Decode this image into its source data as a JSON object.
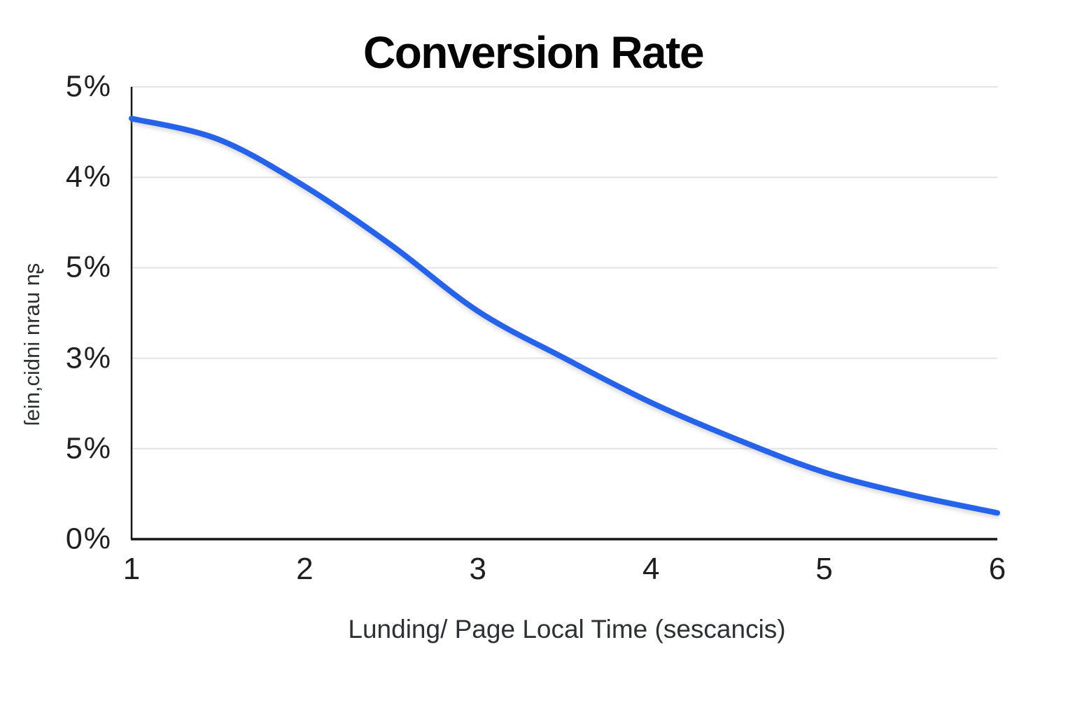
{
  "title": "Conversion Rate",
  "x_axis_label": "Lunding/ Page Local Time (sescancis)",
  "y_axis_label": "ſein,cidni nrau nʂ",
  "chart_data": {
    "type": "line",
    "title": "Conversion Rate",
    "xlabel": "Lunding/ Page Local Time (sescancis)",
    "ylabel": "ſein,cidni nrau nʂ",
    "x_tick_labels": [
      "1",
      "2",
      "3",
      "4",
      "5",
      "6"
    ],
    "y_tick_labels_top_to_bottom": [
      "5%",
      "4%",
      "5%",
      "3%",
      "5%",
      "0%"
    ],
    "xlim": [
      1,
      6
    ],
    "ylim": [
      0,
      5
    ],
    "grid": "horizontal",
    "legend": "none",
    "series": [
      {
        "name": "Conversion Rate",
        "x": [
          1,
          1.5,
          2,
          2.5,
          3,
          3.5,
          4,
          4.5,
          5,
          5.5,
          6
        ],
        "y": [
          4.65,
          4.42,
          3.9,
          3.25,
          2.52,
          2.0,
          1.51,
          1.1,
          0.74,
          0.49,
          0.29
        ],
        "color": "#2563eb"
      }
    ]
  },
  "colors": {
    "line": "#2563eb",
    "grid": "#e3e3e3",
    "axis": "#161616",
    "title": "#050505",
    "tick_label": "#1f1f1f",
    "axis_title": "#2e3134",
    "background": "#ffffff"
  }
}
